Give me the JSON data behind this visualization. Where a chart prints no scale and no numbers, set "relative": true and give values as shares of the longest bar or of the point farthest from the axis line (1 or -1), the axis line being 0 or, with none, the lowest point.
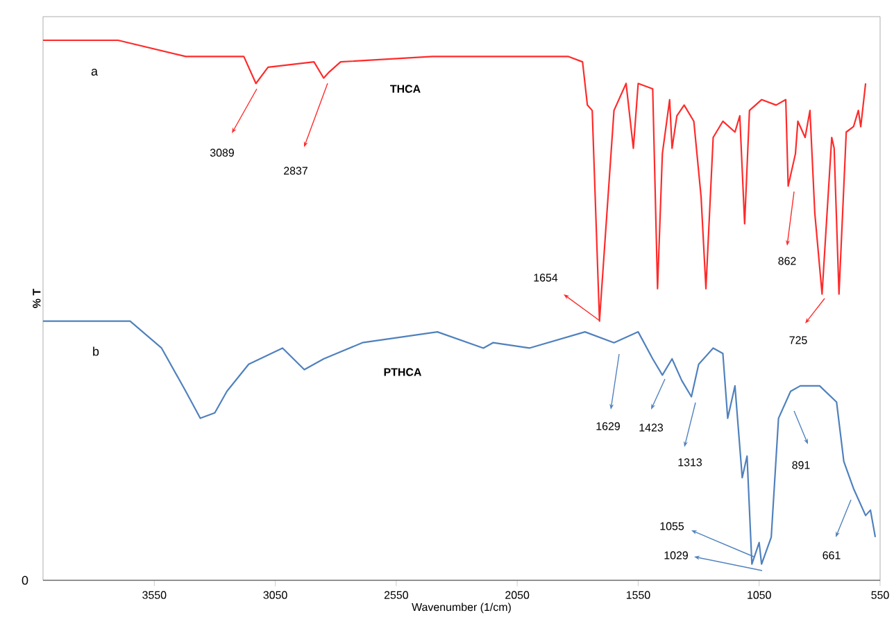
{
  "chart_data": {
    "type": "line",
    "relative": true,
    "xlabel": "Wavenumber (1/cm)",
    "ylabel": "% T",
    "xlim": [
      4010,
      550
    ],
    "xticks": [
      3550,
      3050,
      2550,
      2050,
      1550,
      1050,
      550
    ],
    "series": [
      {
        "name": "THCA",
        "color": "#ff2a2a",
        "x": [
          4010,
          3700,
          3420,
          3180,
          3130,
          3080,
          2890,
          2850,
          2830,
          2780,
          2400,
          1840,
          1780,
          1760,
          1740,
          1710,
          1650,
          1600,
          1570,
          1550,
          1490,
          1470,
          1450,
          1420,
          1410,
          1390,
          1360,
          1320,
          1290,
          1270,
          1240,
          1200,
          1150,
          1130,
          1110,
          1090,
          1040,
          980,
          940,
          930,
          900,
          890,
          860,
          840,
          820,
          790,
          750,
          740,
          720,
          690,
          660,
          640,
          630,
          610
        ],
        "values": [
          1.0,
          1.0,
          0.97,
          0.97,
          0.92,
          0.95,
          0.96,
          0.93,
          0.94,
          0.96,
          0.97,
          0.97,
          0.96,
          0.88,
          0.87,
          0.48,
          0.87,
          0.92,
          0.8,
          0.92,
          0.91,
          0.54,
          0.79,
          0.89,
          0.8,
          0.86,
          0.88,
          0.85,
          0.71,
          0.54,
          0.82,
          0.85,
          0.83,
          0.86,
          0.66,
          0.87,
          0.89,
          0.88,
          0.89,
          0.73,
          0.79,
          0.85,
          0.82,
          0.87,
          0.68,
          0.53,
          0.82,
          0.8,
          0.53,
          0.83,
          0.84,
          0.87,
          0.84,
          0.92
        ]
      },
      {
        "name": "PTHCA",
        "color": "#4f81bd",
        "x": [
          4010,
          3650,
          3520,
          3420,
          3360,
          3300,
          3250,
          3160,
          3020,
          2930,
          2850,
          2690,
          2380,
          2190,
          2150,
          2000,
          1770,
          1650,
          1550,
          1490,
          1450,
          1410,
          1370,
          1330,
          1300,
          1240,
          1200,
          1180,
          1150,
          1120,
          1100,
          1080,
          1050,
          1040,
          1000,
          970,
          920,
          880,
          800,
          730,
          700,
          660,
          610,
          590,
          570
        ],
        "values": [
          0.48,
          0.48,
          0.43,
          0.35,
          0.3,
          0.31,
          0.35,
          0.4,
          0.43,
          0.39,
          0.41,
          0.44,
          0.46,
          0.43,
          0.44,
          0.43,
          0.46,
          0.44,
          0.46,
          0.41,
          0.38,
          0.41,
          0.37,
          0.34,
          0.4,
          0.43,
          0.42,
          0.3,
          0.36,
          0.19,
          0.23,
          0.03,
          0.07,
          0.03,
          0.08,
          0.3,
          0.35,
          0.36,
          0.36,
          0.33,
          0.22,
          0.17,
          0.12,
          0.13,
          0.08
        ]
      }
    ],
    "annotations": [
      "a",
      "b",
      "0",
      "3089",
      "2837",
      "1654",
      "862",
      "725",
      "1629",
      "1423",
      "1313",
      "891",
      "1055",
      "1029",
      "661"
    ]
  }
}
